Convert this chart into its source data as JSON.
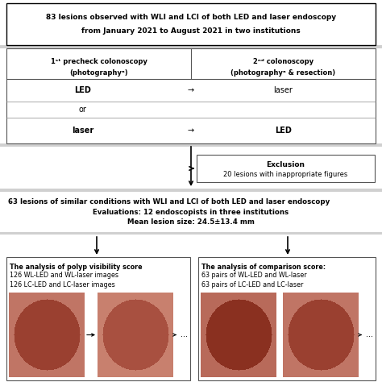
{
  "bg_color": "#ffffff",
  "gray_band": "#d0d0d0",
  "top_box_text1": "83 lesions observed with WLI and LCI of both LED and laser endoscopy",
  "top_box_text2": "from January 2021 to August 2021 in two institutions",
  "col1_header1": "1ˢᵗ precheck colonoscopy",
  "col1_header2": "(photographyᵃ)",
  "col2_header1": "2ⁿᵈ colonoscopy",
  "col2_header2": "(photographyᵃ & resection)",
  "row1_left": "LED",
  "row1_right": "laser",
  "row2_left": "or",
  "row3_left": "laser",
  "row3_right": "LED",
  "excl_text1": "Exclusion",
  "excl_text2": "20 lesions with inappropriate figures",
  "mid_text1": "63 lesions of similar conditions with WLI and LCI of both LED and laser endoscopy",
  "mid_text2": "Evaluations: 12 endoscopists in three institutions",
  "mid_text3": "Mean lesion size: 24.5±13.4 mm",
  "left_box_text1": "The analysis of polyp visibility score",
  "left_box_text2": "126 WL-LED and WL-laser images",
  "left_box_text3": "126 LC-LED and LC-laser images",
  "right_box_text1": "The analysis of comparison score:",
  "right_box_text2": "63 pairs of WL-LED and WL-laser",
  "right_box_text3": "63 pairs of LC-LED and LC-laser",
  "img_color1": "#c07565",
  "img_color2": "#c8806e",
  "img_color3": "#b86a5a",
  "img_color4": "#c07565"
}
